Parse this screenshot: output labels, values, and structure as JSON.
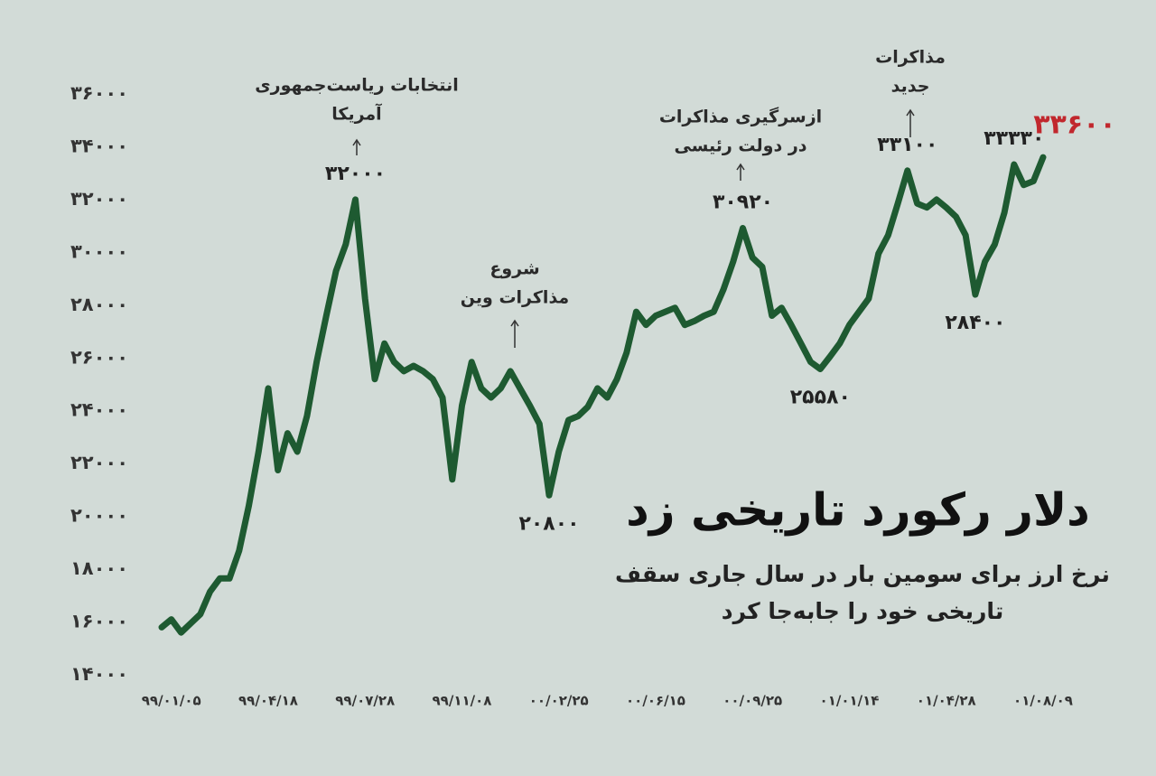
{
  "chart_data": {
    "type": "line",
    "title": "دلار رکورد تاریخی زد",
    "subtitle": [
      "نرخ ارز برای سومین بار در سال جاری سقف",
      "تاریخی خود را جابه‌جا کرد"
    ],
    "annotations": [
      [
        "انتخابات ریاست‌جمهوری",
        "آمریکا"
      ],
      [
        "شروع",
        "مذاکرات وین"
      ],
      [
        "ازسرگیری مذاکرات",
        "در دولت رئیسی"
      ],
      [
        "مذاکرات",
        "جدید"
      ]
    ],
    "categories": [
      null,
      "۹۹/۰۱/۰۵",
      null,
      null,
      null,
      null,
      null,
      null,
      null,
      null,
      null,
      "۹۹/۰۴/۱۸",
      null,
      null,
      null,
      null,
      null,
      null,
      null,
      null,
      null,
      "۹۹/۰۷/۲۸",
      null,
      null,
      null,
      null,
      null,
      null,
      null,
      null,
      null,
      "۹۹/۱۱/۰۸",
      null,
      null,
      null,
      null,
      null,
      null,
      null,
      null,
      null,
      "۰۰/۰۲/۲۵",
      null,
      null,
      null,
      null,
      null,
      null,
      null,
      null,
      null,
      "۰۰/۰۶/۱۵",
      null,
      null,
      null,
      null,
      null,
      null,
      null,
      null,
      null,
      "۰۰/۰۹/۲۵",
      null,
      null,
      null,
      null,
      null,
      null,
      null,
      null,
      null,
      "۰۱/۰۱/۱۴",
      null,
      null,
      null,
      null,
      null,
      null,
      null,
      null,
      null,
      "۰۱/۰۴/۲۸",
      null,
      null,
      null,
      null,
      null,
      null,
      null,
      null,
      null,
      "۰۱/۰۸/۰۹"
    ],
    "values": [
      15800,
      16100,
      15600,
      15950,
      16300,
      17150,
      17650,
      17650,
      18700,
      20400,
      22450,
      24850,
      21750,
      23150,
      22450,
      23800,
      25850,
      27600,
      29300,
      30300,
      32000,
      28250,
      25200,
      26550,
      25850,
      25500,
      25700,
      25500,
      25200,
      24500,
      21400,
      24200,
      25850,
      24850,
      24500,
      24850,
      25500,
      24850,
      24200,
      23500,
      20800,
      22450,
      23650,
      23800,
      24150,
      24850,
      24500,
      25200,
      26200,
      27750,
      27250,
      27600,
      27750,
      27900,
      27250,
      27400,
      27600,
      27750,
      28600,
      29650,
      30920,
      29800,
      29450,
      27600,
      27900,
      27250,
      26550,
      25850,
      25580,
      26050,
      26550,
      27250,
      27750,
      28250,
      29950,
      30650,
      31850,
      33100,
      31850,
      31700,
      32000,
      31700,
      31350,
      30650,
      28400,
      29650,
      30300,
      31500,
      33330,
      32550,
      32700,
      33600
    ],
    "value_labels": [
      null,
      null,
      null,
      null,
      null,
      null,
      null,
      null,
      null,
      null,
      null,
      null,
      null,
      null,
      null,
      null,
      null,
      null,
      null,
      null,
      "۳۲۰۰۰",
      null,
      null,
      null,
      null,
      null,
      null,
      null,
      null,
      null,
      null,
      null,
      null,
      null,
      null,
      null,
      null,
      null,
      null,
      null,
      "۲۰۸۰۰",
      null,
      null,
      null,
      null,
      null,
      null,
      null,
      null,
      null,
      null,
      null,
      null,
      null,
      null,
      null,
      null,
      null,
      null,
      null,
      "۳۰۹۲۰",
      null,
      null,
      null,
      null,
      null,
      null,
      null,
      "۲۵۵۸۰",
      null,
      null,
      null,
      null,
      null,
      null,
      null,
      null,
      "۳۳۱۰۰",
      null,
      null,
      null,
      null,
      null,
      null,
      "۲۸۴۰۰",
      null,
      null,
      null,
      "۳۳۳۳۰",
      null,
      null,
      "۳۳۶۰۰"
    ],
    "color": "#1e5a31",
    "highlight_color": "#c1272d",
    "ylim": [
      14000,
      36000
    ],
    "yticks": [
      {
        "value": 14000,
        "label": "۱۴۰۰۰"
      },
      {
        "value": 16000,
        "label": "۱۶۰۰۰"
      },
      {
        "value": 18000,
        "label": "۱۸۰۰۰"
      },
      {
        "value": 20000,
        "label": "۲۰۰۰۰"
      },
      {
        "value": 22000,
        "label": "۲۲۰۰۰"
      },
      {
        "value": 24000,
        "label": "۲۴۰۰۰"
      },
      {
        "value": 26000,
        "label": "۲۶۰۰۰"
      },
      {
        "value": 28000,
        "label": "۲۸۰۰۰"
      },
      {
        "value": 30000,
        "label": "۳۰۰۰۰"
      },
      {
        "value": 32000,
        "label": "۳۲۰۰۰"
      },
      {
        "value": 34000,
        "label": "۳۴۰۰۰"
      },
      {
        "value": 36000,
        "label": "۳۶۰۰۰"
      }
    ],
    "grid": false
  }
}
